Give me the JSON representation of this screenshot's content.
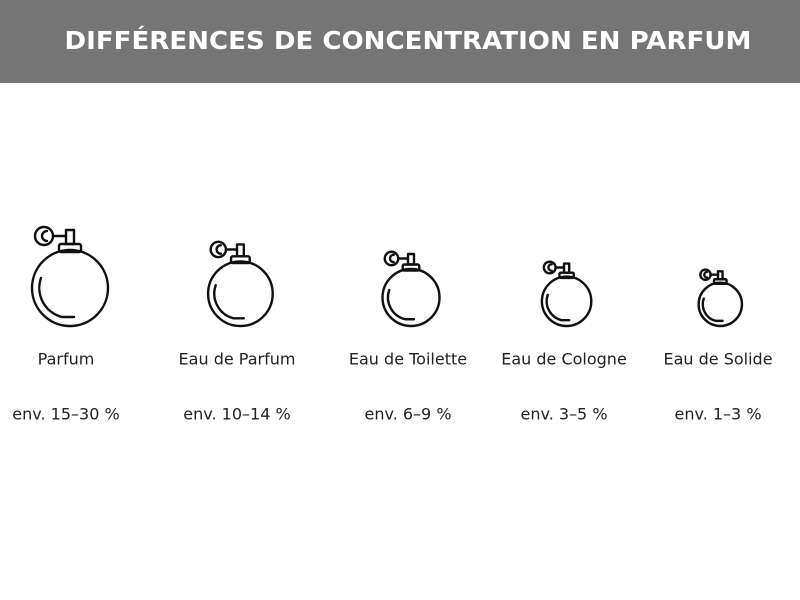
{
  "header": {
    "title": "DIFFÉRENCES DE CONCENTRATION EN PARFUM"
  },
  "items": [
    {
      "name": "Parfum",
      "concentration": "env. 15–30 %"
    },
    {
      "name": "Eau de Parfum",
      "concentration": "env. 10–14 %"
    },
    {
      "name": "Eau de Toilette",
      "concentration": "env. 6–9 %"
    },
    {
      "name": "Eau de Cologne",
      "concentration": "env. 3–5 %"
    },
    {
      "name": "Eau de Solide",
      "concentration": "env. 1–3 %"
    }
  ]
}
